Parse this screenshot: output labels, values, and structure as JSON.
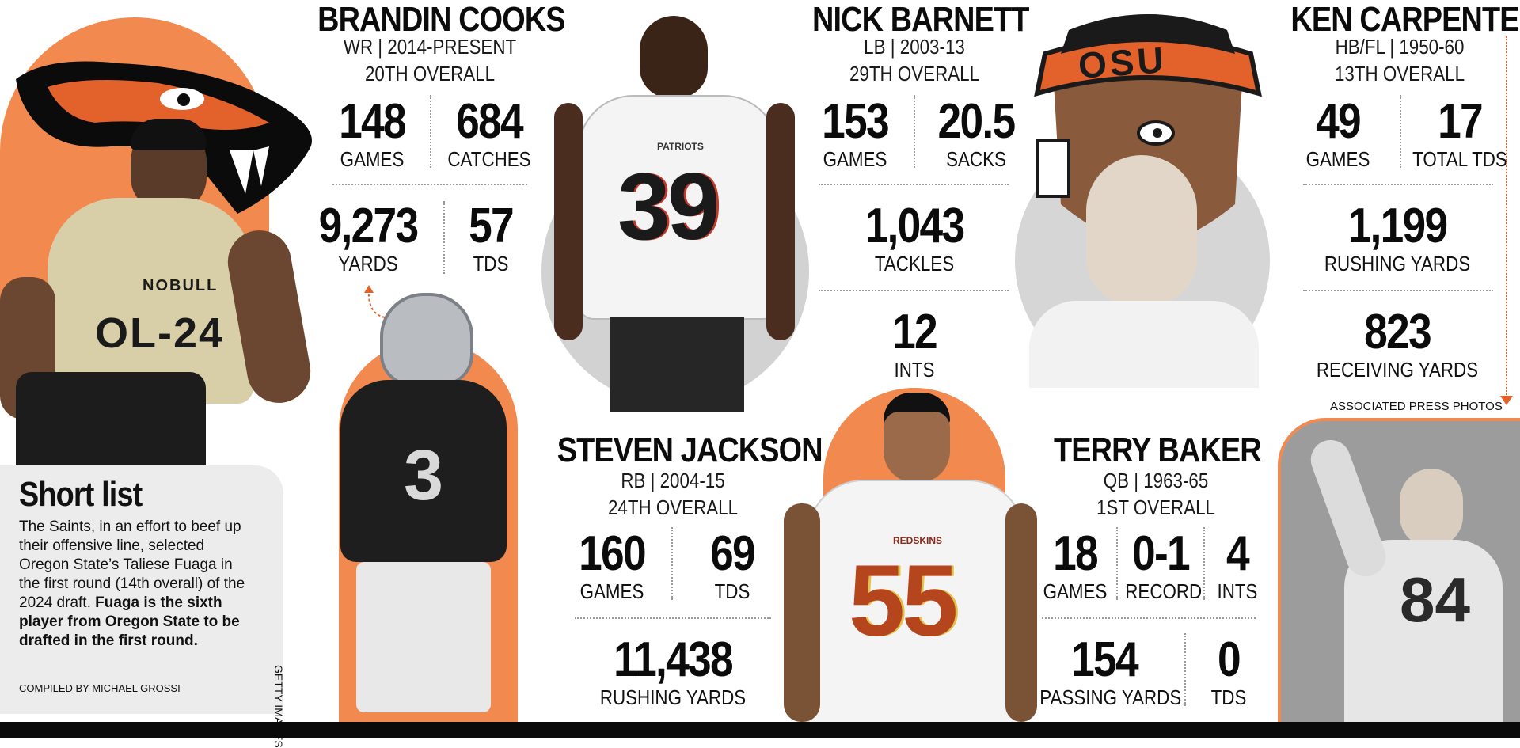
{
  "colors": {
    "osu_orange": "#f2894f",
    "beaver_orange": "#e3622c",
    "black": "#0b0b0b",
    "gray_panel": "#ececec"
  },
  "players": {
    "cooks": {
      "name": "BRANDIN COOKS",
      "pos": "WR | 2014-PRESENT",
      "pick": "20TH OVERALL",
      "s1v": "148",
      "s1l": "GAMES",
      "s2v": "684",
      "s2l": "CATCHES",
      "s3v": "9,273",
      "s3l": "YARDS",
      "s4v": "57",
      "s4l": "TDS"
    },
    "barnett": {
      "name": "NICK BARNETT",
      "pos": "LB | 2003-13",
      "pick": "29TH OVERALL",
      "s1v": "153",
      "s1l": "GAMES",
      "s2v": "20.5",
      "s2l": "SACKS",
      "s3v": "1,043",
      "s3l": "TACKLES",
      "s4v": "12",
      "s4l": "INTS"
    },
    "carpenter": {
      "name": "KEN CARPENTER",
      "pos": "HB/FL | 1950-60",
      "pick": "13TH OVERALL",
      "s1v": "49",
      "s1l": "GAMES",
      "s2v": "17",
      "s2l": "TOTAL TDS",
      "s3v": "1,199",
      "s3l": "RUSHING YARDS",
      "s4v": "823",
      "s4l": "RECEIVING YARDS"
    },
    "jackson": {
      "name": "STEVEN JACKSON",
      "pos": "RB | 2004-15",
      "pick": "24TH OVERALL",
      "s1v": "160",
      "s1l": "GAMES",
      "s2v": "69",
      "s2l": "TDS",
      "s3v": "11,438",
      "s3l": "RUSHING YARDS"
    },
    "baker": {
      "name": "TERRY BAKER",
      "pos": "QB | 1963-65",
      "pick": "1ST OVERALL",
      "s1v": "18",
      "s1l": "GAMES",
      "s2v": "0-1",
      "s2l": "RECORD",
      "s3v": "4",
      "s3l": "INTS",
      "s4v": "154",
      "s4l": "PASSING YARDS",
      "s5v": "0",
      "s5l": "TDS"
    }
  },
  "jerseys": {
    "cooks_left": "OL-24",
    "cooks_brand": "NOBULL",
    "cooks_3": "3",
    "cooks_39": "39",
    "patriots": "PATRIOTS",
    "barnett_55": "55",
    "redskins": "REDSKINS",
    "carpenter_84": "84",
    "osu": "OSU"
  },
  "short_list": {
    "title": "Short list",
    "body_plain": "The Saints, in an effort to beef up their offensive line, selected Oregon State’s Taliese Fuaga in the first round (14th overall) of the 2024 draft.",
    "body_bold": "Fuaga is the sixth player from Oregon State to be drafted in the first round.",
    "compiled": "COMPILED BY MICHAEL GROSSI"
  },
  "credits": {
    "getty": "GETTY IMAGES",
    "ap": "ASSOCIATED PRESS PHOTOS"
  }
}
